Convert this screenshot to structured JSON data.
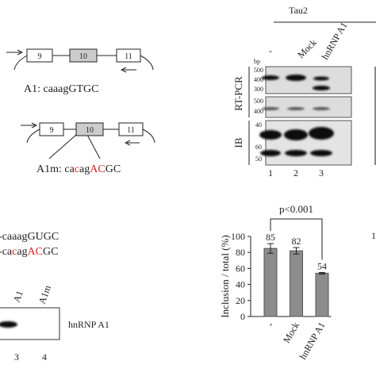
{
  "minigene": {
    "top_exons": [
      "9",
      "10",
      "11"
    ],
    "top_label": "A1: caaagGTGC",
    "bottom_exons": [
      "9",
      "10",
      "11"
    ],
    "bottom_label": [
      "A1m: ca",
      "c",
      "ag",
      "AC",
      "GC"
    ]
  },
  "gel": {
    "title": "Tau2",
    "lanes": [
      "-",
      "Mock",
      "hnRNP A1"
    ],
    "size_unit": "bp",
    "rt_pcr_label": "RT-PCR",
    "ib_label": "IB",
    "rt_pcr_sizes": [
      500,
      400,
      300,
      500,
      400
    ],
    "ib_sizes": [
      40,
      60,
      50
    ],
    "lane_numbers": [
      1,
      2,
      3
    ]
  },
  "probe": {
    "wild_type": "-caaagGUGC",
    "mutant": [
      "-ca",
      "c",
      "ag",
      "AC",
      "GC"
    ]
  },
  "blot": {
    "lanes": [
      "A1",
      "A1m"
    ],
    "label": "hnRNP A1",
    "lane_numbers": [
      3,
      4
    ]
  },
  "cropped_label": "1",
  "chart_data": {
    "type": "bar",
    "ylabel": "Inclusion / total (%)",
    "annotation": "p<0.001",
    "categories": [
      "-",
      "Mock",
      "hnRNP A1"
    ],
    "values": [
      85,
      82,
      54
    ],
    "errors": [
      6,
      4,
      1
    ],
    "color": "#8c8c8c",
    "ylim": [
      0,
      100
    ],
    "yticks": [
      0,
      20,
      40,
      60,
      80,
      100
    ]
  }
}
